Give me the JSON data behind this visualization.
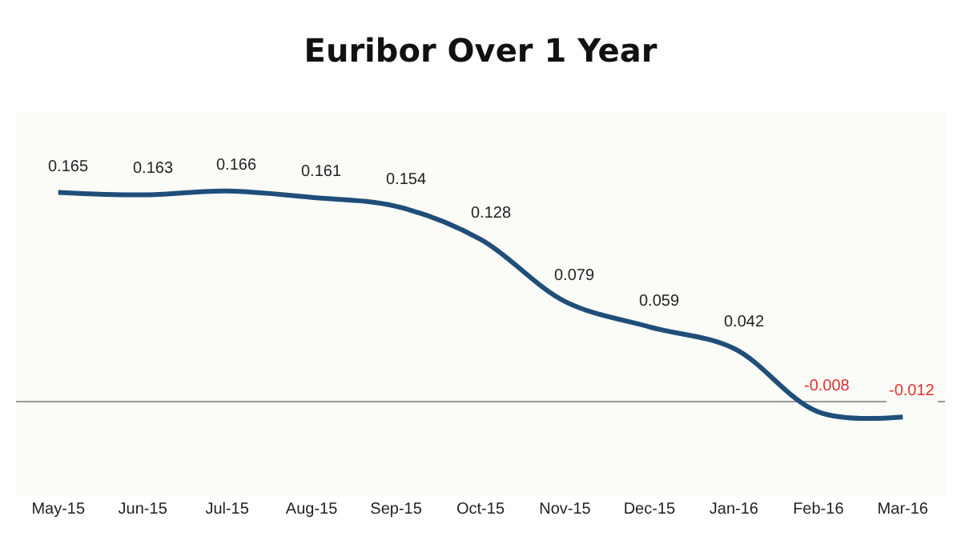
{
  "chart_data": {
    "type": "line",
    "title": "Euribor Over 1 Year",
    "categories": [
      "May-15",
      "Jun-15",
      "Jul-15",
      "Aug-15",
      "Sep-15",
      "Oct-15",
      "Nov-15",
      "Dec-15",
      "Jan-16",
      "Feb-16",
      "Mar-16"
    ],
    "series": [
      {
        "color": "#1f4e79",
        "values": [
          0.165,
          0.163,
          0.166,
          0.161,
          0.154,
          0.128,
          0.079,
          0.059,
          0.042,
          -0.008,
          -0.012
        ]
      }
    ],
    "data_labels": true,
    "marker": "none",
    "line_style": "solid",
    "grid": false,
    "legend": false
  }
}
